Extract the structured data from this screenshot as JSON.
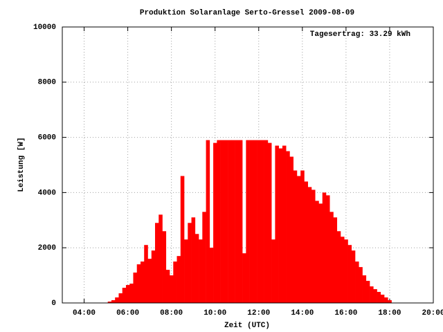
{
  "chart_data": {
    "type": "bar",
    "title": "Produktion Solaranlage Serto-Gressel 2009-08-09",
    "annotation": "Tagesertrag: 33.29 kWh",
    "xlabel": "Zeit (UTC)",
    "ylabel": "Leistung [W]",
    "xlim": [
      3,
      20
    ],
    "xticks": [
      {
        "value": 4,
        "label": "04:00"
      },
      {
        "value": 6,
        "label": "06:00"
      },
      {
        "value": 8,
        "label": "08:00"
      },
      {
        "value": 10,
        "label": "10:00"
      },
      {
        "value": 12,
        "label": "12:00"
      },
      {
        "value": 14,
        "label": "14:00"
      },
      {
        "value": 16,
        "label": "16:00"
      },
      {
        "value": 18,
        "label": "18:00"
      },
      {
        "value": 20,
        "label": "20:00"
      }
    ],
    "ylim": [
      0,
      10000
    ],
    "yticks": [
      0,
      2000,
      4000,
      6000,
      8000,
      10000
    ],
    "grid": true,
    "color": "#ff0000",
    "x": [
      5,
      5.167,
      5.333,
      5.5,
      5.667,
      5.833,
      6,
      6.167,
      6.333,
      6.5,
      6.667,
      6.833,
      7,
      7.167,
      7.333,
      7.5,
      7.667,
      7.833,
      8,
      8.167,
      8.333,
      8.5,
      8.667,
      8.833,
      9,
      9.167,
      9.333,
      9.5,
      9.667,
      9.833,
      10,
      10.167,
      10.333,
      10.5,
      10.667,
      10.833,
      11,
      11.167,
      11.333,
      11.5,
      11.667,
      11.833,
      12,
      12.167,
      12.333,
      12.5,
      12.667,
      12.833,
      13,
      13.167,
      13.333,
      13.5,
      13.667,
      13.833,
      14,
      14.167,
      14.333,
      14.5,
      14.667,
      14.833,
      15,
      15.167,
      15.333,
      15.5,
      15.667,
      15.833,
      16,
      16.167,
      16.333,
      16.5,
      16.667,
      16.833,
      17,
      17.167,
      17.333,
      17.5,
      17.667,
      17.833,
      18,
      18.167
    ],
    "values": [
      0,
      50,
      100,
      200,
      350,
      550,
      650,
      700,
      1100,
      1400,
      1500,
      2100,
      1600,
      1900,
      2900,
      3200,
      2600,
      1200,
      1000,
      1500,
      1700,
      4600,
      2300,
      2900,
      3100,
      2500,
      2300,
      3300,
      5900,
      2000,
      5800,
      5900,
      5900,
      5900,
      5900,
      5900,
      5900,
      5900,
      1800,
      5900,
      5900,
      5900,
      5900,
      5900,
      5900,
      5800,
      2300,
      5700,
      5600,
      5700,
      5500,
      5300,
      4800,
      4600,
      4800,
      4400,
      4200,
      4100,
      3700,
      3600,
      4000,
      3900,
      3300,
      3100,
      2600,
      2400,
      2300,
      2100,
      1900,
      1500,
      1300,
      1000,
      800,
      600,
      500,
      400,
      300,
      200,
      100,
      0
    ]
  }
}
